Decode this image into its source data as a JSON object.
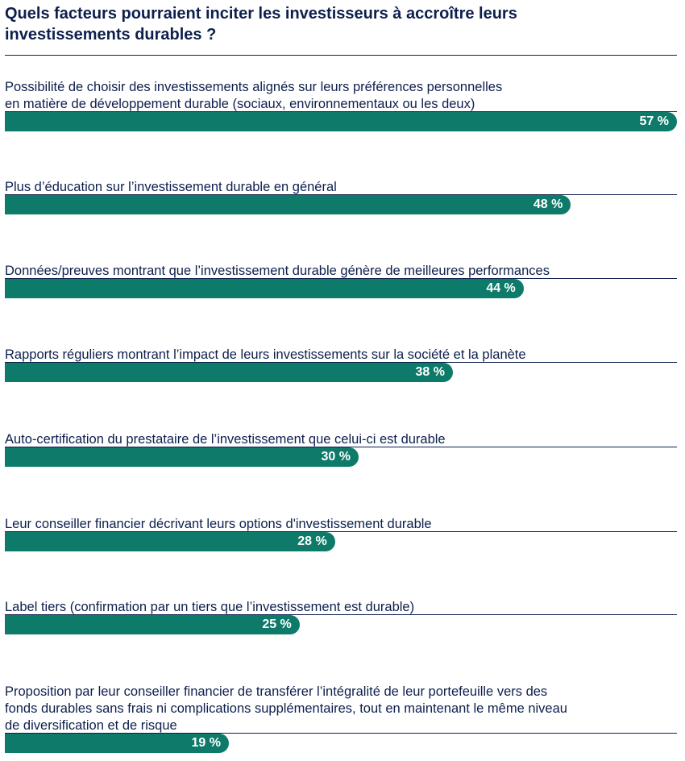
{
  "title_lines": [
    "Quels facteurs pourraient inciter les investisseurs à accroître leurs",
    "investissements durables ?"
  ],
  "colors": {
    "bar": "#0e7a6a",
    "text": "#0d1f4d",
    "bar_label": "#ffffff"
  },
  "chart_data": {
    "type": "bar",
    "orientation": "horizontal",
    "title": "Quels facteurs pourraient inciter les investisseurs à accroître leurs investissements durables ?",
    "xlim": [
      0,
      57
    ],
    "grid": false,
    "legend": "none",
    "categories": [
      [
        "Possibilité de choisir des investissements alignés sur leurs préférences personnelles",
        "en matière de développement durable (sociaux, environnementaux ou les deux)"
      ],
      [
        "Plus d’éducation sur l’investissement durable en général"
      ],
      [
        "Données/preuves montrant que l’investissement durable génère de meilleures performances"
      ],
      [
        "Rapports réguliers montrant l’impact de leurs investissements sur la société et la planète"
      ],
      [
        "Auto-certification du prestataire de l’investissement que celui-ci est durable"
      ],
      [
        "Leur conseiller financier décrivant leurs options d'investissement durable"
      ],
      [
        "Label tiers (confirmation par un tiers que l’investissement est durable)"
      ],
      [
        "Proposition par leur conseiller financier de transférer l’intégralité de leur portefeuille vers des",
        "fonds durables sans frais ni complications supplémentaires, tout en maintenant le même niveau",
        "de diversification et de risque"
      ]
    ],
    "values": [
      57,
      48,
      44,
      38,
      30,
      28,
      25,
      19
    ],
    "value_labels": [
      "57 %",
      "48 %",
      "44 %",
      "38 %",
      "30 %",
      "28 %",
      "25 %",
      "19 %"
    ]
  }
}
